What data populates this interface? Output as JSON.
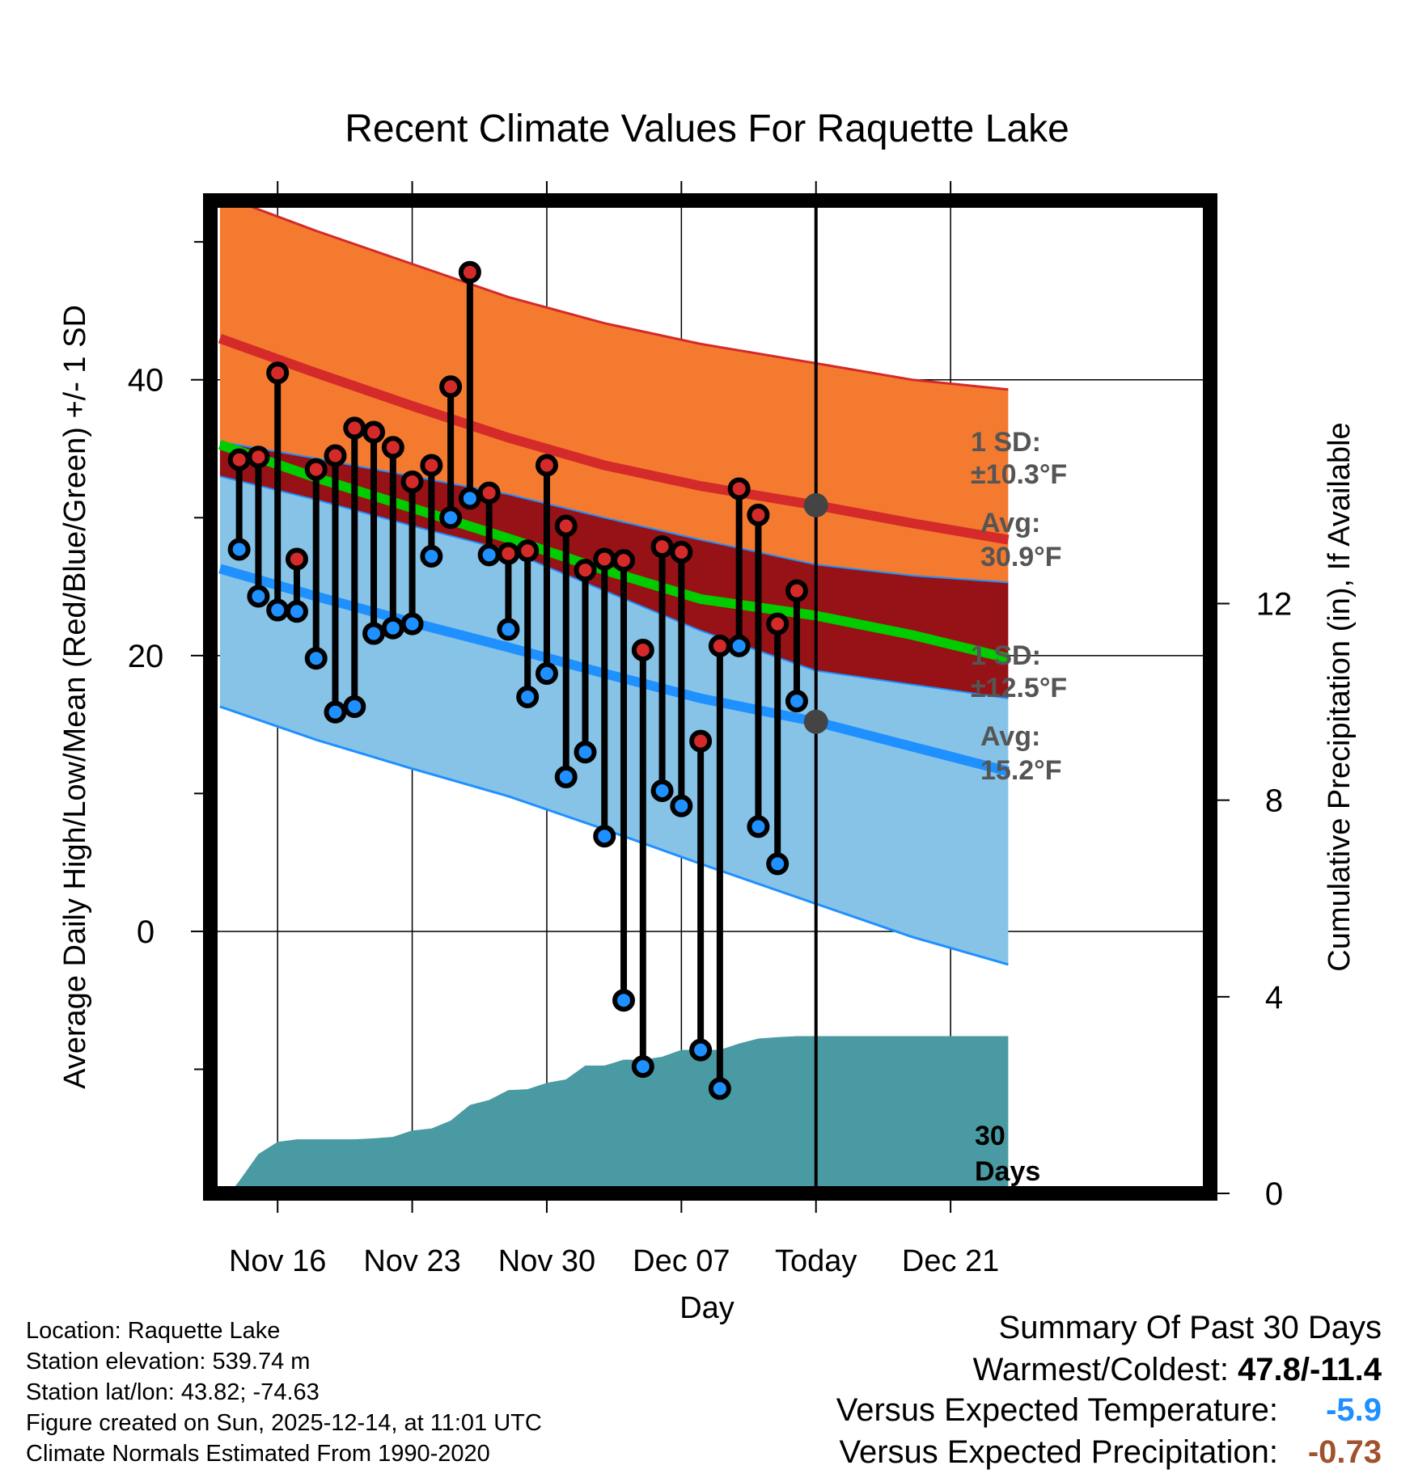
{
  "chart_data": {
    "type": "line",
    "title": "Recent Climate Values For Raquette Lake",
    "xlabel": "Day",
    "ylabel": "Average Daily High/Low/Mean (Red/Blue/Green) +/- 1 SD",
    "y2label": "Cumulative Precipitation (in), If Available",
    "ylim": [
      -19,
      53
    ],
    "y2lim": [
      0,
      20.2
    ],
    "xlim": [
      -0.5,
      51.5
    ],
    "yticks": [
      "0",
      "20",
      "40"
    ],
    "y2ticks": [
      "0",
      "4",
      "8",
      "12"
    ],
    "xticks": [
      {
        "day": 3,
        "label": "Nov 16"
      },
      {
        "day": 10,
        "label": "Nov 23"
      },
      {
        "day": 17,
        "label": "Nov 30"
      },
      {
        "day": 24,
        "label": "Dec 07"
      },
      {
        "day": 31,
        "label": "Today"
      },
      {
        "day": 38,
        "label": "Dec 21"
      }
    ],
    "today_day": 31,
    "normals": {
      "days": [
        0,
        5,
        10,
        15,
        20,
        25,
        31,
        36,
        41
      ],
      "high_mean": [
        43.0,
        40.5,
        38.1,
        35.8,
        33.8,
        32.3,
        30.9,
        29.6,
        28.4
      ],
      "high_upper": [
        53.4,
        50.8,
        48.4,
        46.0,
        44.1,
        42.6,
        41.2,
        40.0,
        39.3
      ],
      "high_lower": [
        35.5,
        34.3,
        33.0,
        31.7,
        30.0,
        28.4,
        26.6,
        25.8,
        25.3
      ],
      "low_mean": [
        26.3,
        24.3,
        22.4,
        20.6,
        18.7,
        16.9,
        15.2,
        13.4,
        11.6
      ],
      "low_upper": [
        33.0,
        31.3,
        29.4,
        27.6,
        24.7,
        21.8,
        18.9,
        17.9,
        16.9
      ],
      "low_lower": [
        16.3,
        13.9,
        11.8,
        9.8,
        7.4,
        4.9,
        2.0,
        -0.4,
        -2.4
      ],
      "mean": [
        35.3,
        32.9,
        30.7,
        28.5,
        26.2,
        24.1,
        22.9,
        21.5,
        19.8
      ]
    },
    "daily": {
      "days": [
        1,
        2,
        3,
        4,
        5,
        6,
        7,
        8,
        9,
        10,
        11,
        12,
        13,
        14,
        15,
        16,
        17,
        18,
        19,
        20,
        21,
        22,
        23,
        24,
        25,
        26,
        27,
        28,
        29,
        30
      ],
      "high": [
        34.2,
        34.4,
        40.5,
        27.0,
        33.5,
        34.5,
        36.5,
        36.2,
        35.1,
        32.6,
        33.8,
        39.5,
        47.8,
        31.8,
        27.4,
        27.6,
        33.8,
        29.4,
        26.2,
        27.0,
        26.9,
        20.4,
        27.9,
        27.5,
        13.8,
        20.7,
        32.1,
        30.2,
        22.3,
        24.7
      ],
      "low": [
        27.7,
        24.3,
        23.3,
        23.2,
        19.8,
        15.9,
        16.3,
        21.6,
        22.0,
        22.3,
        27.2,
        30.0,
        31.4,
        27.3,
        21.9,
        17.0,
        18.7,
        11.2,
        13.0,
        6.9,
        -5.0,
        -9.8,
        10.2,
        9.1,
        -8.6,
        -11.4,
        20.7,
        7.6,
        4.9,
        16.7
      ]
    },
    "precip_cumulative": {
      "days": [
        -0.5,
        0.5,
        1,
        2,
        3,
        4,
        5,
        6,
        7,
        8,
        9,
        10,
        11,
        12,
        13,
        14,
        15,
        16,
        17,
        18,
        19,
        20,
        21,
        22,
        23,
        24,
        25,
        26,
        27,
        28,
        29,
        30,
        31,
        41
      ],
      "values": [
        0.0,
        0.0,
        0.25,
        0.8,
        1.05,
        1.1,
        1.1,
        1.1,
        1.1,
        1.12,
        1.15,
        1.28,
        1.32,
        1.48,
        1.8,
        1.9,
        2.1,
        2.12,
        2.25,
        2.32,
        2.6,
        2.6,
        2.72,
        2.72,
        2.78,
        2.92,
        2.92,
        2.92,
        3.05,
        3.15,
        3.18,
        3.2,
        3.2,
        3.2
      ]
    },
    "annotations": {
      "high_sd_title": "1 SD:",
      "high_sd_value": "±10.3°F",
      "high_avg_title": "Avg:",
      "high_avg_value": "30.9°F",
      "high_avg_temp": 30.9,
      "low_sd_title": "1 SD:",
      "low_sd_value": "±12.5°F",
      "low_avg_title": "Avg:",
      "low_avg_value": "15.2°F",
      "low_avg_temp": 15.2,
      "days_value": "30",
      "days_label": "Days"
    }
  },
  "info": {
    "location": "Location: Raquette Lake",
    "elevation": "Station elevation: 539.74 m",
    "latlon": "Station lat/lon: 43.82; -74.63",
    "created": "Figure created on Sun, 2025-12-14, at 11:01 UTC",
    "normals": "Climate Normals Estimated From 1990-2020"
  },
  "summary": {
    "title": "Summary Of Past 30 Days",
    "warm_cold_label": "Warmest/Coldest: ",
    "warm_cold_value": "47.8/-11.4",
    "temp_label": "Versus Expected Temperature:",
    "temp_value": "-5.9",
    "precip_label": "Versus Expected Precipitation:",
    "precip_value": "-0.73"
  },
  "colors": {
    "high_band": "#f47a30",
    "high_line": "#d42a2a",
    "overlap": "#971216",
    "mean_line": "#00cc00",
    "low_band": "#87c3e7",
    "low_line": "#1e90ff",
    "precip": "#4a9aa3",
    "high_dot": "#d42a2a",
    "low_dot": "#1e90ff",
    "ann_text": "#555555",
    "ann_dot": "#444444"
  }
}
